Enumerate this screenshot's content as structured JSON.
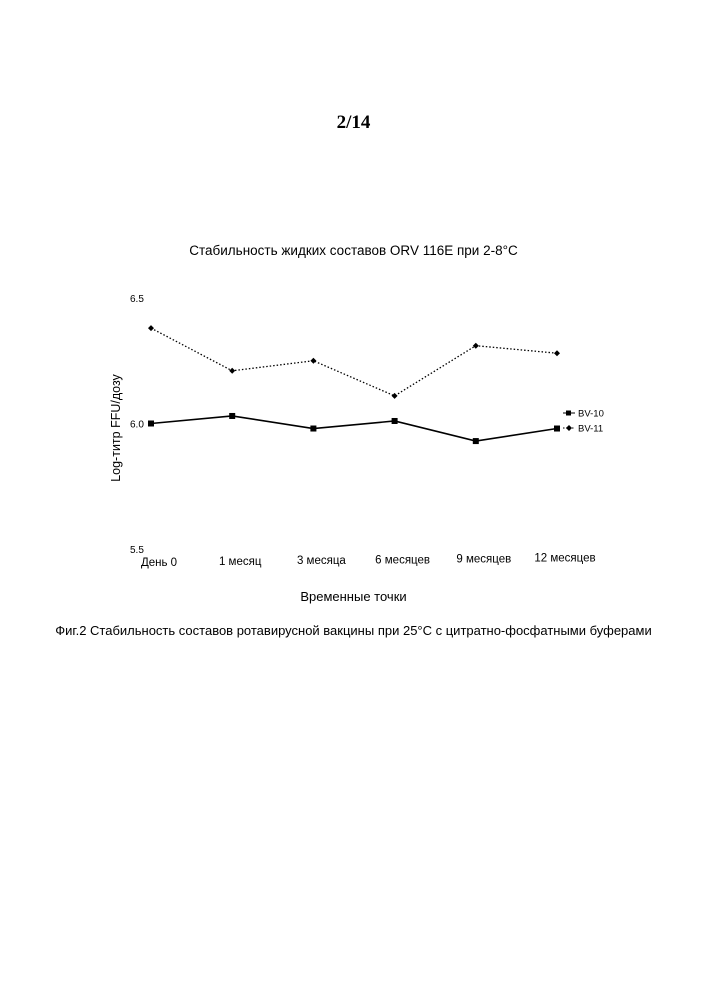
{
  "page": {
    "number": "2/14",
    "caption": "Фиг.2 Стабильность составов ротавирусной вакцины при 25°С с цитратно-фосфатными буферами"
  },
  "chart_data": {
    "type": "line",
    "title": "Стабильность жидких составов ORV 116E при 2-8°C",
    "xlabel": "Временные точки",
    "ylabel": "Log-титр FFU/дозу",
    "categories": [
      "День 0",
      "1 месяц",
      "3 месяца",
      "6 месяцев",
      "9 месяцев",
      "12 месяцев"
    ],
    "ylim": [
      5.5,
      6.5
    ],
    "yticks": [
      "5.5",
      "6.0",
      "6.5"
    ],
    "legend_position": "right",
    "series": [
      {
        "name": "BV-10",
        "values": [
          6.0,
          6.03,
          5.98,
          6.01,
          5.93,
          5.98
        ],
        "style": "solid",
        "marker": "square",
        "color": "#000000"
      },
      {
        "name": "BV-11",
        "values": [
          6.38,
          6.21,
          6.25,
          6.11,
          6.31,
          6.28
        ],
        "style": "dotted",
        "marker": "diamond",
        "color": "#000000"
      }
    ]
  }
}
